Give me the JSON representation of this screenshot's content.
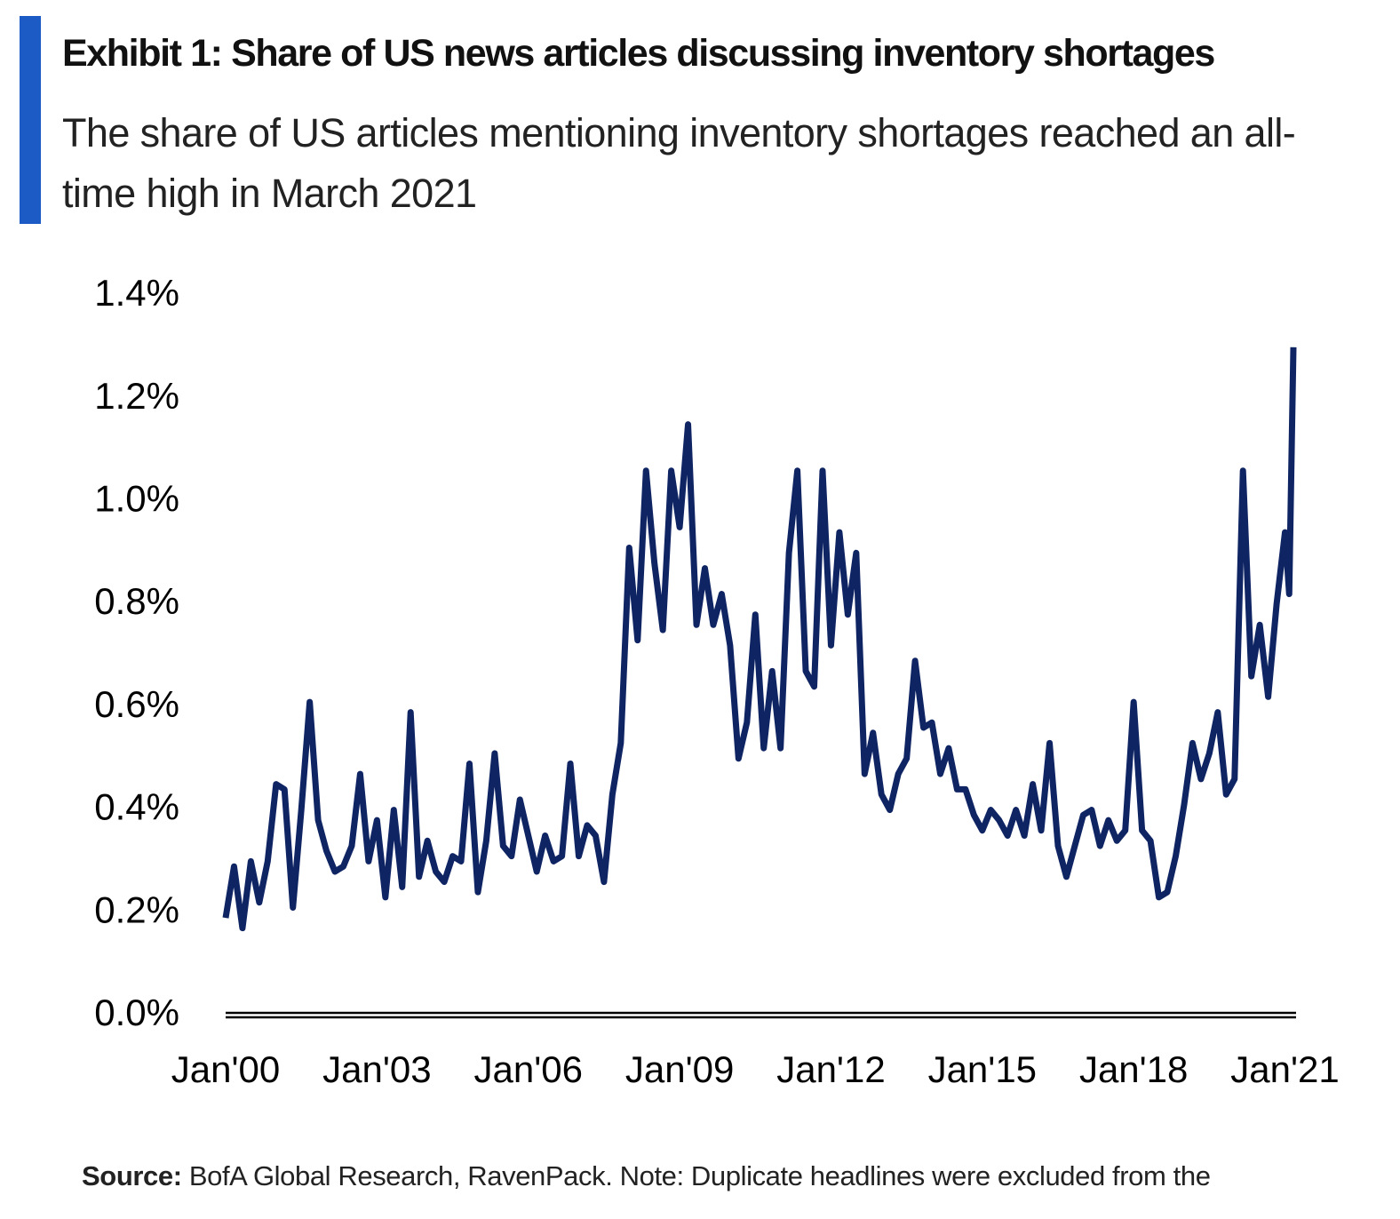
{
  "chart_data": {
    "type": "line",
    "title": "Exhibit 1: Share of US news articles discussing inventory shortages",
    "subtitle": "The share of US articles mentioning inventory shortages reached an all-time high in March 2021",
    "source_label": "Source:",
    "source_text": "BofA Global Research, RavenPack. Note: Duplicate headlines were excluded from the",
    "x": [
      "2000-01",
      "2000-03",
      "2000-05",
      "2000-07",
      "2000-09",
      "2000-11",
      "2001-01",
      "2001-03",
      "2001-05",
      "2001-07",
      "2001-09",
      "2001-11",
      "2002-01",
      "2002-03",
      "2002-05",
      "2002-07",
      "2002-09",
      "2002-11",
      "2003-01",
      "2003-03",
      "2003-05",
      "2003-07",
      "2003-09",
      "2003-11",
      "2004-01",
      "2004-03",
      "2004-05",
      "2004-07",
      "2004-09",
      "2004-11",
      "2005-01",
      "2005-03",
      "2005-05",
      "2005-07",
      "2005-09",
      "2005-11",
      "2006-01",
      "2006-03",
      "2006-05",
      "2006-07",
      "2006-09",
      "2006-11",
      "2007-01",
      "2007-03",
      "2007-05",
      "2007-07",
      "2007-09",
      "2007-11",
      "2008-01",
      "2008-03",
      "2008-05",
      "2008-07",
      "2008-09",
      "2008-11",
      "2009-01",
      "2009-03",
      "2009-05",
      "2009-07",
      "2009-09",
      "2009-11",
      "2010-01",
      "2010-03",
      "2010-05",
      "2010-07",
      "2010-09",
      "2010-11",
      "2011-01",
      "2011-03",
      "2011-05",
      "2011-07",
      "2011-09",
      "2011-11",
      "2012-01",
      "2012-03",
      "2012-05",
      "2012-07",
      "2012-09",
      "2012-11",
      "2013-01",
      "2013-03",
      "2013-05",
      "2013-07",
      "2013-09",
      "2013-11",
      "2014-01",
      "2014-03",
      "2014-05",
      "2014-07",
      "2014-09",
      "2014-11",
      "2015-01",
      "2015-03",
      "2015-05",
      "2015-07",
      "2015-09",
      "2015-11",
      "2016-01",
      "2016-03",
      "2016-05",
      "2016-07",
      "2016-09",
      "2016-11",
      "2017-01",
      "2017-03",
      "2017-05",
      "2017-07",
      "2017-09",
      "2017-11",
      "2018-01",
      "2018-03",
      "2018-05",
      "2018-07",
      "2018-09",
      "2018-11",
      "2019-01",
      "2019-03",
      "2019-05",
      "2019-07",
      "2019-09",
      "2019-11",
      "2020-01",
      "2020-03",
      "2020-05",
      "2020-07",
      "2020-09",
      "2020-11",
      "2021-01",
      "2021-02",
      "2021-03"
    ],
    "series": [
      {
        "name": "Share of articles",
        "color": "#0f2463",
        "values": [
          0.19,
          0.29,
          0.17,
          0.3,
          0.22,
          0.3,
          0.45,
          0.44,
          0.21,
          0.4,
          0.61,
          0.38,
          0.32,
          0.28,
          0.29,
          0.33,
          0.47,
          0.3,
          0.38,
          0.23,
          0.4,
          0.25,
          0.59,
          0.27,
          0.34,
          0.28,
          0.26,
          0.31,
          0.3,
          0.49,
          0.24,
          0.34,
          0.51,
          0.33,
          0.31,
          0.42,
          0.35,
          0.28,
          0.35,
          0.3,
          0.31,
          0.49,
          0.31,
          0.37,
          0.35,
          0.26,
          0.43,
          0.53,
          0.91,
          0.73,
          1.06,
          0.88,
          0.75,
          1.06,
          0.95,
          1.15,
          0.76,
          0.87,
          0.76,
          0.82,
          0.72,
          0.5,
          0.57,
          0.78,
          0.52,
          0.67,
          0.52,
          0.9,
          1.06,
          0.67,
          0.64,
          1.06,
          0.72,
          0.94,
          0.78,
          0.9,
          0.47,
          0.55,
          0.43,
          0.4,
          0.47,
          0.5,
          0.69,
          0.56,
          0.57,
          0.47,
          0.52,
          0.44,
          0.44,
          0.39,
          0.36,
          0.4,
          0.38,
          0.35,
          0.4,
          0.35,
          0.45,
          0.36,
          0.53,
          0.33,
          0.27,
          0.33,
          0.39,
          0.4,
          0.33,
          0.38,
          0.34,
          0.36,
          0.61,
          0.36,
          0.34,
          0.23,
          0.24,
          0.31,
          0.41,
          0.53,
          0.46,
          0.51,
          0.59,
          0.43,
          0.46,
          1.06,
          0.66,
          0.76,
          0.62,
          0.8,
          0.94,
          0.82,
          1.3
        ]
      }
    ],
    "xlim": [
      "2000-01",
      "2021-03"
    ],
    "xticks": [
      {
        "value": "2000-01",
        "label": "Jan'00"
      },
      {
        "value": "2003-01",
        "label": "Jan'03"
      },
      {
        "value": "2006-01",
        "label": "Jan'06"
      },
      {
        "value": "2009-01",
        "label": "Jan'09"
      },
      {
        "value": "2012-01",
        "label": "Jan'12"
      },
      {
        "value": "2015-01",
        "label": "Jan'15"
      },
      {
        "value": "2018-01",
        "label": "Jan'18"
      },
      {
        "value": "2021-01",
        "label": "Jan'21"
      }
    ],
    "ylim": [
      0,
      1.4
    ],
    "yticks": [
      {
        "value": 0,
        "label": "0.0%"
      },
      {
        "value": 0.2,
        "label": "0.2%"
      },
      {
        "value": 0.4,
        "label": "0.4%"
      },
      {
        "value": 0.6,
        "label": "0.6%"
      },
      {
        "value": 0.8,
        "label": "0.8%"
      },
      {
        "value": 1.0,
        "label": "1.0%"
      },
      {
        "value": 1.2,
        "label": "1.2%"
      },
      {
        "value": 1.4,
        "label": "1.4%"
      }
    ],
    "grid": false
  }
}
